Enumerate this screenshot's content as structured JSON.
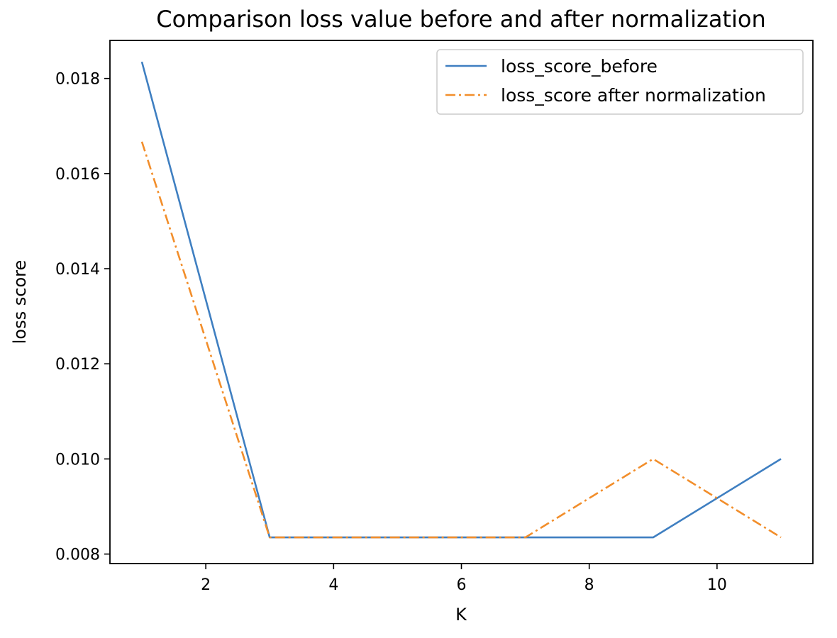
{
  "chart_data": {
    "type": "line",
    "title": "Comparison loss value before and after normalization",
    "xlabel": "K",
    "ylabel": "loss score",
    "x": [
      1,
      3,
      5,
      7,
      9,
      11
    ],
    "series": [
      {
        "name": "loss_score_before",
        "values": [
          0.01835,
          0.00835,
          0.00835,
          0.00835,
          0.00835,
          0.01
        ],
        "color": "#3f7fc1",
        "line_style": "solid"
      },
      {
        "name": "loss_score after normalization",
        "values": [
          0.01667,
          0.00835,
          0.00835,
          0.00835,
          0.01,
          0.00835
        ],
        "color": "#f28e2b",
        "line_style": "dash-dot"
      }
    ],
    "xlim": [
      0.5,
      11.5
    ],
    "ylim": [
      0.0078,
      0.0188
    ],
    "xticks": [
      2,
      4,
      6,
      8,
      10
    ],
    "xtick_labels": [
      "2",
      "4",
      "6",
      "8",
      "10"
    ],
    "yticks": [
      0.008,
      0.01,
      0.012,
      0.014,
      0.016,
      0.018
    ],
    "ytick_labels": [
      "0.008",
      "0.010",
      "0.012",
      "0.014",
      "0.016",
      "0.018"
    ],
    "grid": false,
    "legend_position": "top-right"
  }
}
